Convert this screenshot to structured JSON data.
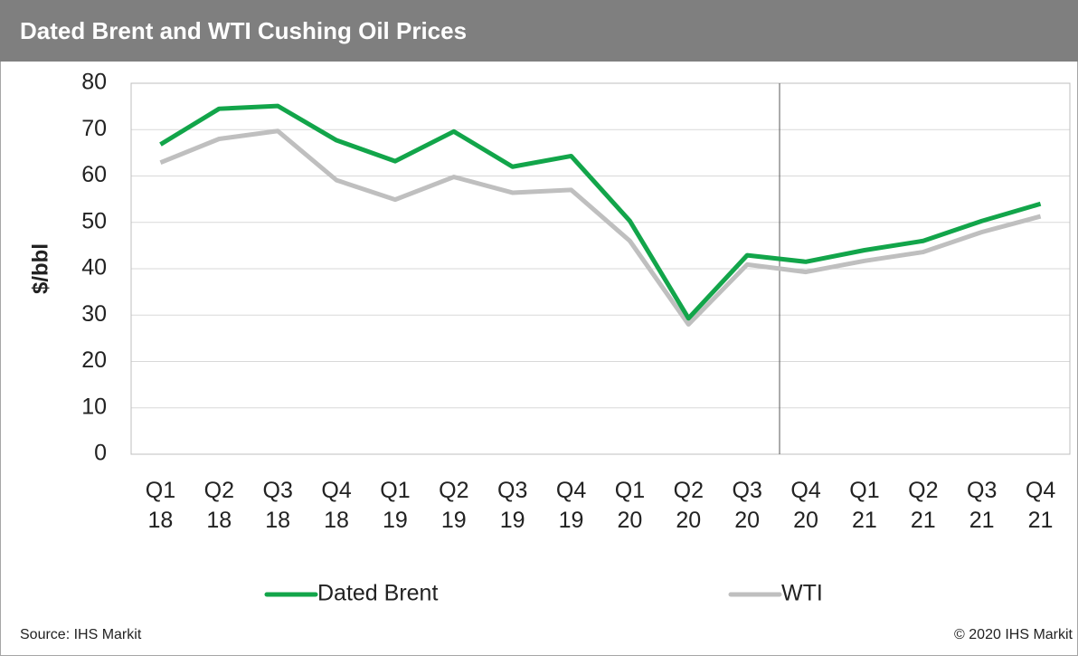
{
  "chart_data": {
    "type": "line",
    "title": "Dated Brent and WTI Cushing Oil Prices",
    "y_label": "$/bbl",
    "categories": [
      "Q1\n18",
      "Q2\n18",
      "Q3\n18",
      "Q4\n18",
      "Q1\n19",
      "Q2\n19",
      "Q3\n19",
      "Q4\n19",
      "Q1\n20",
      "Q2\n20",
      "Q3\n20",
      "Q4\n20",
      "Q1\n21",
      "Q2\n21",
      "Q3\n21",
      "Q4\n21"
    ],
    "series": [
      {
        "name": "Dated Brent",
        "color": "#12a54a",
        "values": [
          66.8,
          74.5,
          75.1,
          67.7,
          63.2,
          69.6,
          62.0,
          64.3,
          50.3,
          29.3,
          42.9,
          41.5,
          44.0,
          46.0,
          50.3,
          54.0
        ]
      },
      {
        "name": "WTI",
        "color": "#bfbfbf",
        "values": [
          62.9,
          68.0,
          69.7,
          59.1,
          54.9,
          59.8,
          56.4,
          57.0,
          46.0,
          28.0,
          40.9,
          39.3,
          41.7,
          43.6,
          47.9,
          51.3
        ]
      }
    ],
    "ylim": [
      0,
      80
    ],
    "yticks": [
      0,
      10,
      20,
      30,
      40,
      50,
      60,
      70,
      80
    ],
    "grid": true,
    "legend": "bottom",
    "source": "Source: IHS Markit",
    "copyright": "© 2020 IHS Markit"
  }
}
